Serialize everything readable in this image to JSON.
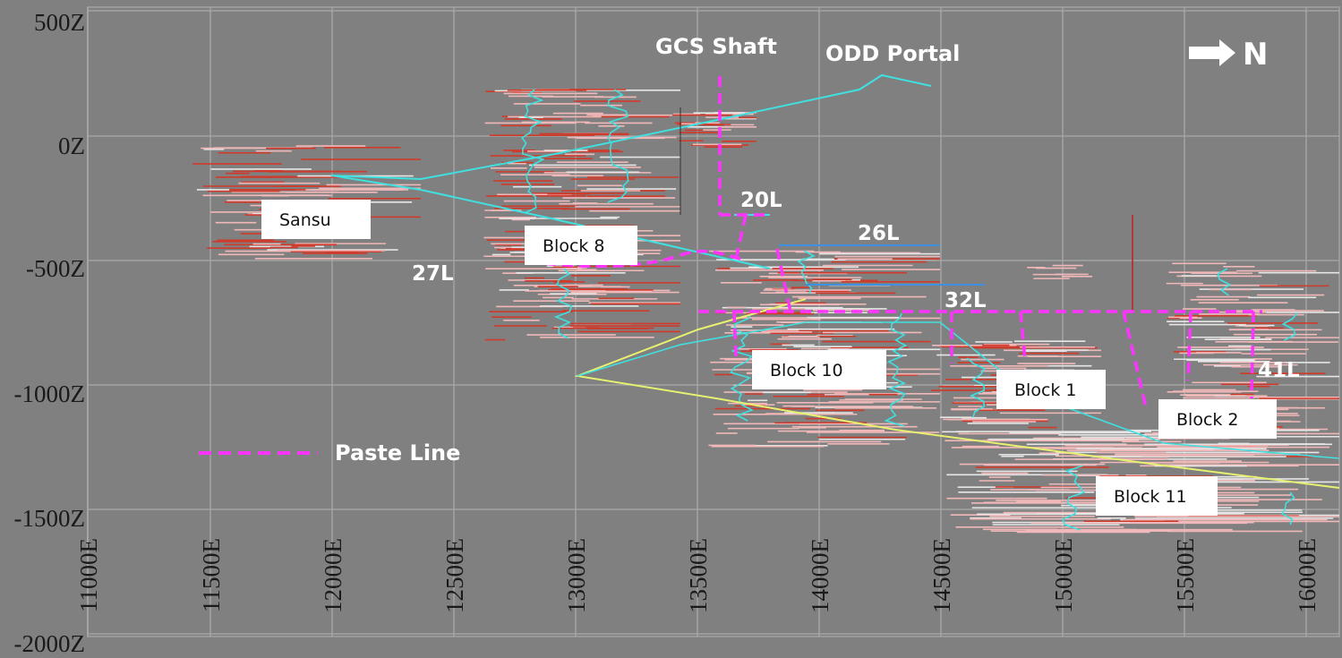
{
  "colors": {
    "background": "#808080",
    "grid": "#a9a9a9",
    "paste_line": "#ff33ff",
    "drive_cyan": "#40e0e0",
    "stope_red": "#d03a2a",
    "stope_pink": "#f0b8b8",
    "decline_yellow": "#e8f070",
    "label_white": "#ffffff"
  },
  "axes": {
    "z_ticks": [
      "500Z",
      "0Z",
      "-500Z",
      "-1000Z",
      "-1500Z",
      "-2000Z"
    ],
    "e_ticks": [
      "11000E",
      "11500E",
      "12000E",
      "12500E",
      "13000E",
      "13500E",
      "14000E",
      "14500E",
      "15000E",
      "15500E",
      "16000E"
    ]
  },
  "north_arrow": {
    "label": "N"
  },
  "features": [
    {
      "id": "gcs",
      "label": "GCS Shaft"
    },
    {
      "id": "odd",
      "label": "ODD Portal"
    }
  ],
  "levels": [
    "20L",
    "26L",
    "27L",
    "32L",
    "41L"
  ],
  "blocks": [
    "Sansu",
    "Block 8",
    "Block 10",
    "Block 1",
    "Block 2",
    "Block 11"
  ],
  "legend": {
    "label": "Paste Line"
  }
}
